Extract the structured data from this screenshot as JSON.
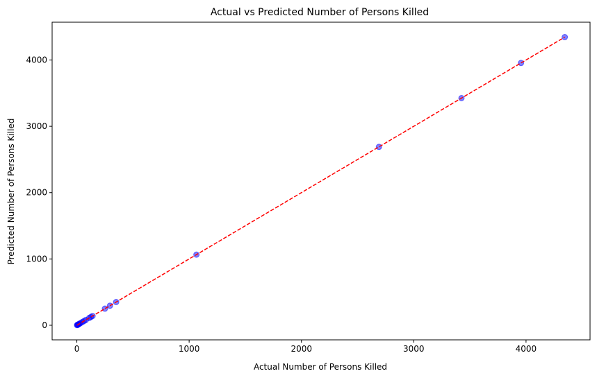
{
  "chart_data": {
    "type": "scatter",
    "title": "Actual vs Predicted Number of Persons Killed",
    "xlabel": "Actual Number of Persons Killed",
    "ylabel": "Predicted Number of Persons Killed",
    "xlim": [
      -220,
      4570
    ],
    "ylim": [
      -220,
      4570
    ],
    "xticks": [
      0,
      1000,
      2000,
      3000,
      4000
    ],
    "yticks": [
      0,
      1000,
      2000,
      3000,
      4000
    ],
    "xtick_labels": [
      "0",
      "1000",
      "2000",
      "3000",
      "4000"
    ],
    "ytick_labels": [
      "0",
      "1000",
      "2000",
      "3000",
      "4000"
    ],
    "grid": false,
    "series": [
      {
        "type": "scatter",
        "color": "#0000ff",
        "opacity": 0.5,
        "points": [
          {
            "x": 2,
            "y": 2
          },
          {
            "x": 5,
            "y": 5
          },
          {
            "x": 8,
            "y": 8
          },
          {
            "x": 12,
            "y": 12
          },
          {
            "x": 18,
            "y": 18
          },
          {
            "x": 25,
            "y": 25
          },
          {
            "x": 35,
            "y": 35
          },
          {
            "x": 50,
            "y": 50
          },
          {
            "x": 65,
            "y": 65
          },
          {
            "x": 80,
            "y": 80
          },
          {
            "x": 110,
            "y": 110
          },
          {
            "x": 125,
            "y": 125
          },
          {
            "x": 140,
            "y": 140
          },
          {
            "x": 250,
            "y": 250
          },
          {
            "x": 295,
            "y": 295
          },
          {
            "x": 350,
            "y": 350
          },
          {
            "x": 1065,
            "y": 1065
          },
          {
            "x": 2690,
            "y": 2690
          },
          {
            "x": 3425,
            "y": 3425
          },
          {
            "x": 3955,
            "y": 3955
          },
          {
            "x": 4345,
            "y": 4345
          }
        ]
      },
      {
        "type": "line",
        "color": "#ff0000",
        "dash": "dashed",
        "x": [
          0,
          4345
        ],
        "y": [
          0,
          4345
        ]
      }
    ]
  }
}
